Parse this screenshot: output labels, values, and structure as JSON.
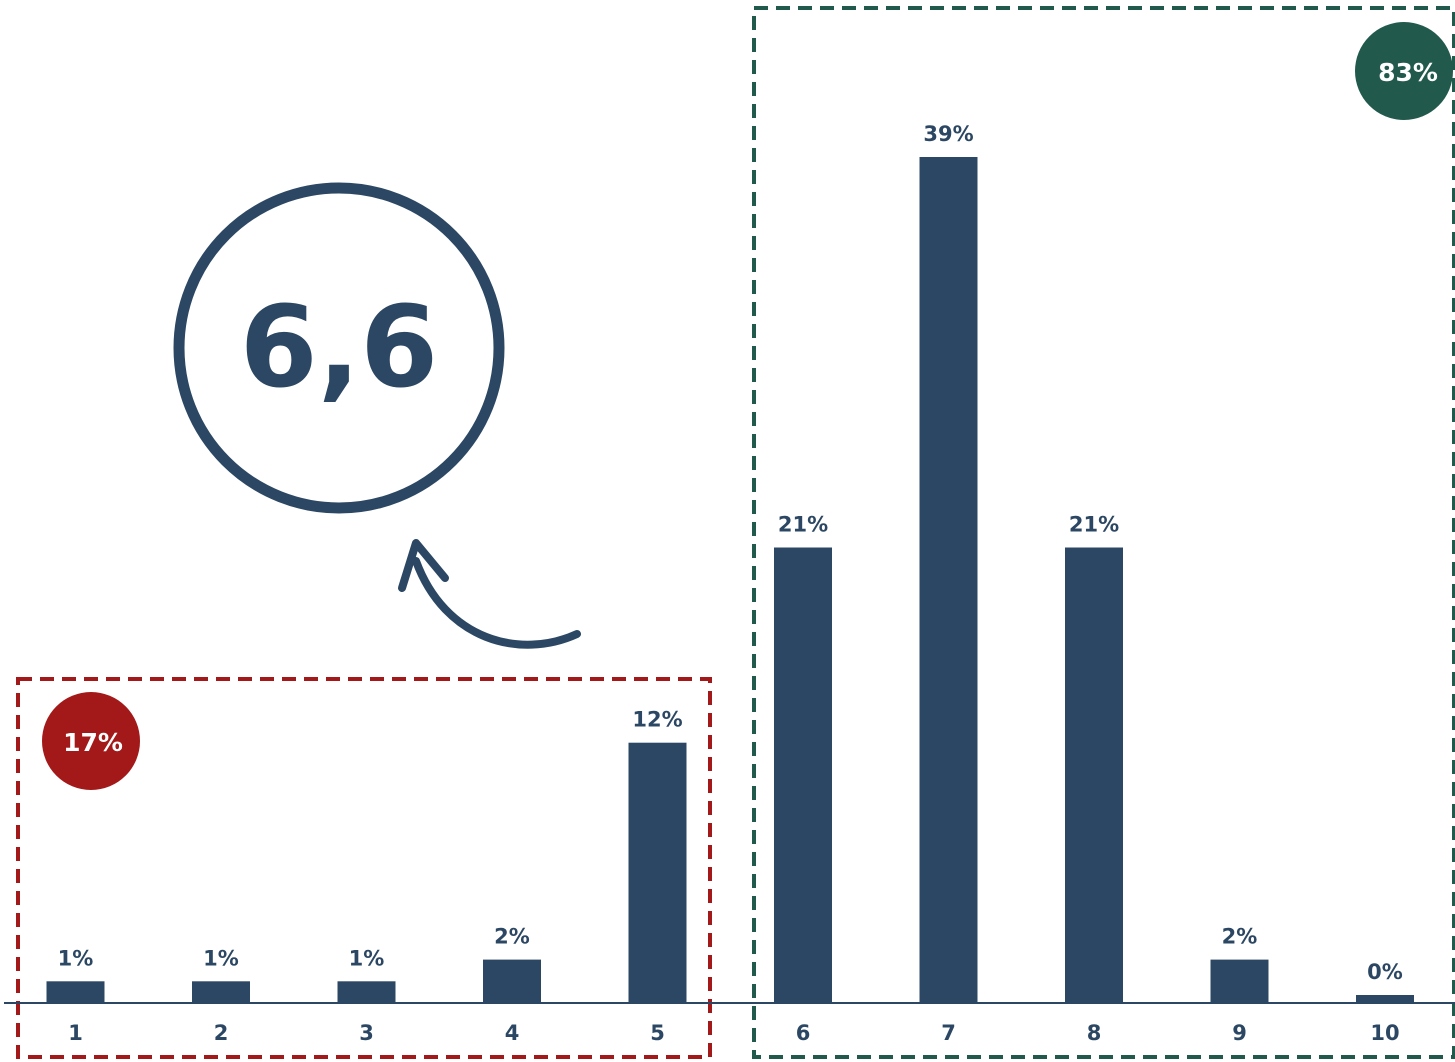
{
  "chart_data": {
    "type": "bar",
    "categories": [
      "1",
      "2",
      "3",
      "4",
      "5",
      "6",
      "7",
      "8",
      "9",
      "10"
    ],
    "values": [
      1,
      1,
      1,
      2,
      12,
      21,
      39,
      21,
      2,
      0
    ],
    "value_labels": [
      "1%",
      "1%",
      "1%",
      "2%",
      "12%",
      "21%",
      "39%",
      "21%",
      "2%",
      "0%"
    ],
    "ylim": [
      0,
      40
    ],
    "grid": false,
    "legend": "none",
    "colors": {
      "bar": "#2c4763",
      "text": "#2c4763",
      "axis": "#2c4763",
      "low_group": "#a31818",
      "high_group": "#215a4c"
    },
    "mean": {
      "label": "6,6"
    },
    "groups": [
      {
        "id": "low",
        "categories": [
          "1",
          "2",
          "3",
          "4",
          "5"
        ],
        "share_label": "17%"
      },
      {
        "id": "high",
        "categories": [
          "6",
          "7",
          "8",
          "9",
          "10"
        ],
        "share_label": "83%"
      }
    ]
  }
}
